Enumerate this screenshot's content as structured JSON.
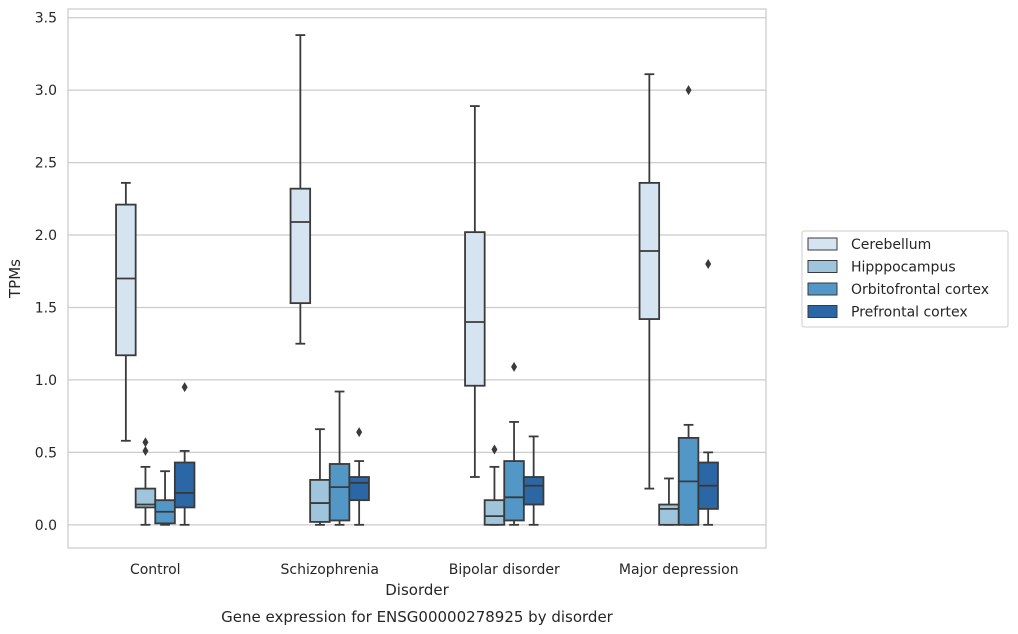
{
  "chart_data": {
    "type": "box",
    "caption": "Gene expression for ENSG00000278925 by disorder",
    "xlabel": "Disorder",
    "ylabel": "TPMs",
    "ylim": [
      -0.16,
      3.56
    ],
    "yticks": [
      "0.0",
      "0.5",
      "1.0",
      "1.5",
      "2.0",
      "2.5",
      "3.0",
      "3.5"
    ],
    "grid": "horizontal",
    "legend_position": "right",
    "categories": [
      "Control",
      "Schizophrenia",
      "Bipolar disorder",
      "Major depression"
    ],
    "series": [
      {
        "name": "Cerebellum",
        "color": "#d6e4f2",
        "boxes": [
          {
            "whislo": 0.58,
            "q1": 1.17,
            "med": 1.7,
            "q3": 2.21,
            "whishi": 2.36,
            "fliers": []
          },
          {
            "whislo": 1.25,
            "q1": 1.53,
            "med": 2.09,
            "q3": 2.32,
            "whishi": 3.38,
            "fliers": []
          },
          {
            "whislo": 0.33,
            "q1": 0.96,
            "med": 1.4,
            "q3": 2.02,
            "whishi": 2.89,
            "fliers": []
          },
          {
            "whislo": 0.25,
            "q1": 1.42,
            "med": 1.89,
            "q3": 2.36,
            "whishi": 3.11,
            "fliers": []
          }
        ]
      },
      {
        "name": "Hipppocampus",
        "color": "#9ec5db",
        "boxes": [
          {
            "whislo": 0.0,
            "q1": 0.12,
            "med": 0.14,
            "q3": 0.25,
            "whishi": 0.4,
            "fliers": [
              0.51,
              0.57
            ]
          },
          {
            "whislo": 0.0,
            "q1": 0.02,
            "med": 0.15,
            "q3": 0.31,
            "whishi": 0.66,
            "fliers": []
          },
          {
            "whislo": 0.0,
            "q1": 0.0,
            "med": 0.06,
            "q3": 0.17,
            "whishi": 0.4,
            "fliers": [
              0.52
            ]
          },
          {
            "whislo": 0.0,
            "q1": 0.0,
            "med": 0.11,
            "q3": 0.14,
            "whishi": 0.32,
            "fliers": []
          }
        ]
      },
      {
        "name": "Orbitofrontal cortex",
        "color": "#5297c5",
        "boxes": [
          {
            "whislo": 0.0,
            "q1": 0.01,
            "med": 0.09,
            "q3": 0.17,
            "whishi": 0.37,
            "fliers": []
          },
          {
            "whislo": 0.0,
            "q1": 0.03,
            "med": 0.26,
            "q3": 0.42,
            "whishi": 0.92,
            "fliers": []
          },
          {
            "whislo": 0.0,
            "q1": 0.03,
            "med": 0.19,
            "q3": 0.44,
            "whishi": 0.71,
            "fliers": [
              1.09
            ]
          },
          {
            "whislo": 0.0,
            "q1": 0.0,
            "med": 0.3,
            "q3": 0.6,
            "whishi": 0.69,
            "fliers": [
              3.0
            ]
          }
        ]
      },
      {
        "name": "Prefrontal cortex",
        "color": "#2b66a5",
        "boxes": [
          {
            "whislo": 0.0,
            "q1": 0.12,
            "med": 0.22,
            "q3": 0.43,
            "whishi": 0.51,
            "fliers": [
              0.95
            ]
          },
          {
            "whislo": 0.0,
            "q1": 0.17,
            "med": 0.29,
            "q3": 0.33,
            "whishi": 0.44,
            "fliers": [
              0.64
            ]
          },
          {
            "whislo": 0.0,
            "q1": 0.14,
            "med": 0.27,
            "q3": 0.33,
            "whishi": 0.61,
            "fliers": []
          },
          {
            "whislo": 0.0,
            "q1": 0.11,
            "med": 0.27,
            "q3": 0.43,
            "whishi": 0.5,
            "fliers": [
              1.8
            ]
          }
        ]
      }
    ]
  }
}
